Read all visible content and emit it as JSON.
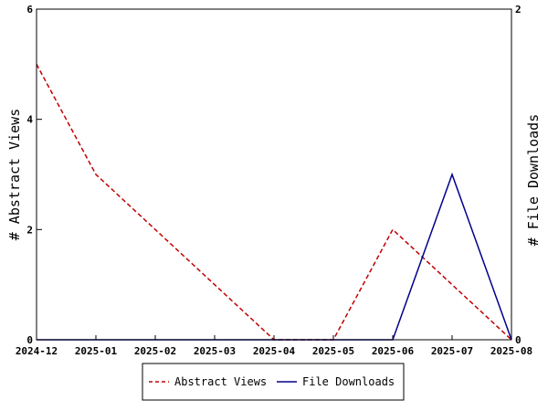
{
  "chart_data": {
    "type": "line",
    "x": [
      "2024-12",
      "2025-01",
      "2025-02",
      "2025-03",
      "2025-04",
      "2025-05",
      "2025-06",
      "2025-07",
      "2025-08"
    ],
    "series": [
      {
        "name": "Abstract Views",
        "axis": "left",
        "values": [
          5,
          3,
          2,
          1,
          0,
          0,
          2,
          1,
          0
        ],
        "color": "#c00000",
        "style": "dashed"
      },
      {
        "name": "File Downloads",
        "axis": "right",
        "values": [
          0,
          0,
          0,
          0,
          0,
          0,
          0,
          1,
          0
        ],
        "color": "#00008b",
        "style": "solid"
      }
    ],
    "ylabel_left": "# Abstract Views",
    "ylabel_right": "# File Downloads",
    "ylim_left": [
      0,
      6
    ],
    "ylim_right": [
      0,
      2
    ],
    "yticks_left": [
      0,
      2,
      4,
      6
    ],
    "yticks_right": [
      0,
      2
    ],
    "grid": false,
    "legend_position": "bottom-center"
  }
}
